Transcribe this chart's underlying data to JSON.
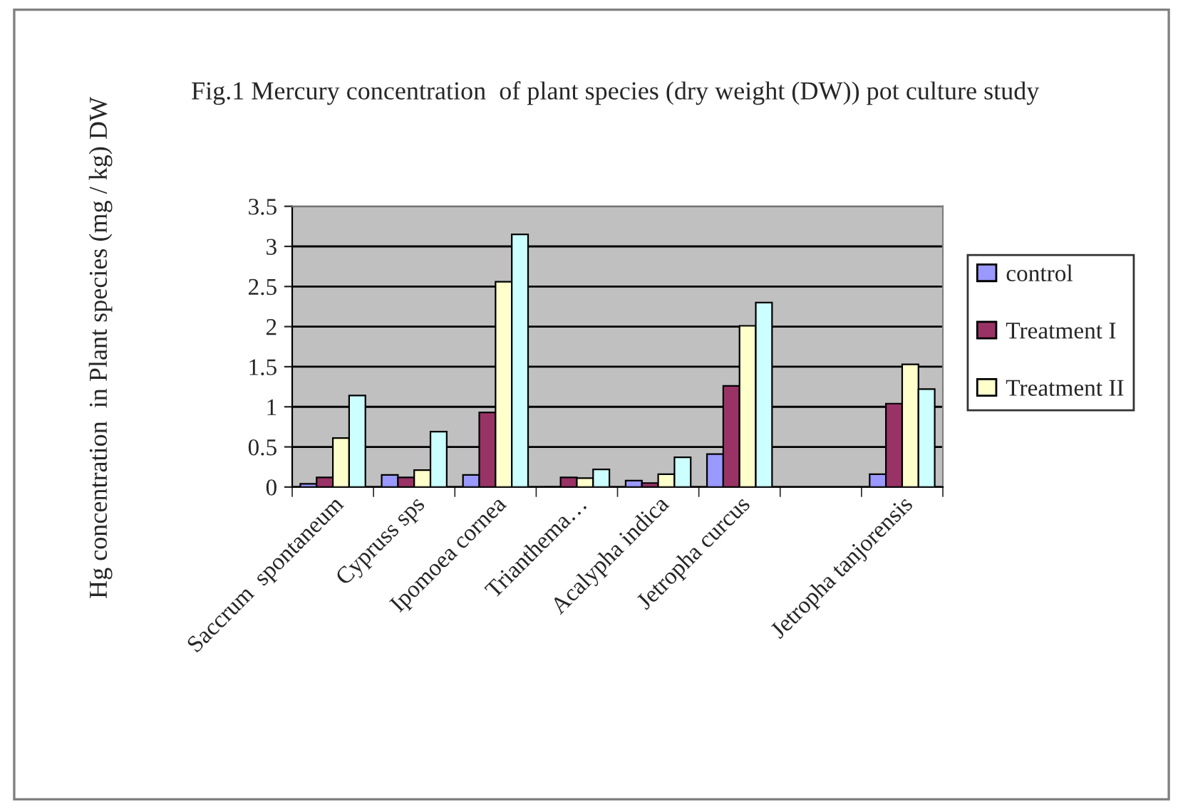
{
  "chart_data": {
    "type": "bar",
    "title": "Fig.1 Mercury concentration  of plant species (dry weight (DW)) pot culture study",
    "ylabel": "Hg concentration  in Plant species (mg / kg) DW",
    "categories": [
      "Saccrum  spontaneum",
      "Cypruss sps",
      "Ipomoea cornea",
      "Trianthema…",
      "Acalypha indica",
      "Jetropha curcus",
      null,
      "Jetropha tanjorensis"
    ],
    "series": [
      {
        "name": "control",
        "color": "#9999ff",
        "values": [
          0.04,
          0.15,
          0.15,
          0,
          0.08,
          0.41,
          null,
          0.16
        ]
      },
      {
        "name": "Treatment I",
        "color": "#993366",
        "values": [
          0.12,
          0.12,
          0.93,
          0.12,
          0.05,
          1.26,
          null,
          1.04
        ]
      },
      {
        "name": "Treatment II",
        "color": "#ffffcc",
        "values": [
          0.61,
          0.21,
          2.56,
          0.11,
          0.16,
          2.01,
          null,
          1.53
        ]
      },
      {
        "color": "#ccffff",
        "values": [
          1.14,
          0.69,
          3.15,
          0.22,
          0.37,
          2.3,
          null,
          1.22
        ]
      }
    ],
    "ylim": [
      0,
      3.5
    ],
    "yticks": [
      0,
      0.5,
      1,
      1.5,
      2,
      2.5,
      3,
      3.5
    ],
    "grid": "y",
    "legend": "right"
  }
}
